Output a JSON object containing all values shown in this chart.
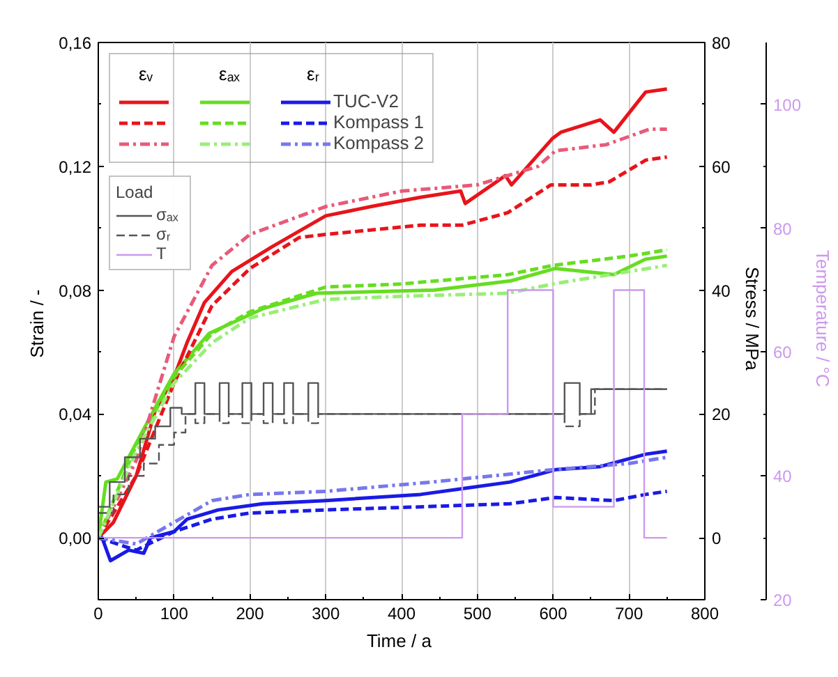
{
  "chart_data": {
    "type": "line",
    "xlabel": "Time  / a",
    "ylabel": "Strain  / -",
    "y2label": "Stress  / MPa",
    "y3label": "Temperature  / °C",
    "legend_title": "Load",
    "annotations": [
      "εᵥ",
      "εₐₓ",
      "εᵣ"
    ],
    "xlim": [
      0,
      800
    ],
    "xticks": [
      0,
      100,
      200,
      300,
      400,
      500,
      600,
      700,
      800
    ],
    "ylim": [
      -0.02,
      0.16
    ],
    "yticks": [
      {
        "value": 0,
        "label": "0,00"
      },
      {
        "value": 0.04,
        "label": "0,04"
      },
      {
        "value": 0.08,
        "label": "0,08"
      },
      {
        "value": 0.12,
        "label": "0,12"
      },
      {
        "value": 0.16,
        "label": "0,16"
      }
    ],
    "y2lim": [
      -10,
      80
    ],
    "y2ticks": [
      0,
      20,
      40,
      60,
      80
    ],
    "y3lim": [
      20,
      110
    ],
    "y3ticks": [
      20,
      40,
      60,
      80,
      100
    ],
    "grid": "x",
    "legend": "top left",
    "series": [
      {
        "color": "#e8141b",
        "line_style": "solid",
        "x": [
          0,
          20,
          50,
          75,
          100,
          117,
          140,
          176,
          229,
          300,
          360,
          425,
          478,
          484,
          537,
          545,
          599,
          610,
          662,
          680,
          709,
          722,
          750
        ],
        "values": [
          0,
          0.005,
          0.02,
          0.041,
          0.052,
          0.063,
          0.076,
          0.086,
          0.094,
          0.104,
          0.107,
          0.11,
          0.112,
          0.108,
          0.117,
          0.114,
          0.129,
          0.131,
          0.135,
          0.131,
          0.14,
          0.144,
          0.145
        ]
      },
      {
        "color": "#66dd22",
        "line_style": "solid",
        "x": [
          0,
          10,
          25,
          40,
          75,
          100,
          146,
          217,
          288,
          443,
          544,
          603,
          680,
          722,
          750
        ],
        "values": [
          0,
          0.018,
          0.019,
          0.026,
          0.042,
          0.053,
          0.066,
          0.074,
          0.079,
          0.08,
          0.083,
          0.087,
          0.085,
          0.09,
          0.091
        ]
      },
      {
        "name": "TUC-V2",
        "color": "#1a1ae6",
        "line_style": "solid",
        "x": [
          0,
          5,
          16,
          40,
          60,
          69,
          100,
          117,
          158,
          217,
          300,
          425,
          484,
          543,
          603,
          662,
          722,
          750
        ],
        "values": [
          0,
          0,
          -0.0074,
          -0.004,
          -0.005,
          0,
          0.002,
          0.006,
          0.009,
          0.011,
          0.012,
          0.014,
          0.016,
          0.018,
          0.022,
          0.023,
          0.027,
          0.028
        ]
      },
      {
        "color": "#e8141b",
        "line_style": "dashed",
        "x": [
          0,
          50,
          100,
          150,
          200,
          265,
          300,
          425,
          480,
          540,
          597,
          650,
          674,
          722,
          750
        ],
        "values": [
          0,
          0.02,
          0.05,
          0.075,
          0.087,
          0.097,
          0.098,
          0.101,
          0.101,
          0.105,
          0.114,
          0.114,
          0.115,
          0.122,
          0.123
        ]
      },
      {
        "color": "#66dd22",
        "line_style": "dashed",
        "x": [
          0,
          50,
          100,
          150,
          200,
          300,
          400,
          540,
          600,
          700,
          750
        ],
        "values": [
          0,
          0.03,
          0.052,
          0.066,
          0.073,
          0.081,
          0.082,
          0.085,
          0.088,
          0.091,
          0.093
        ]
      },
      {
        "name": "Kompass 1",
        "color": "#1a1ae6",
        "line_style": "dashed",
        "x": [
          0,
          50,
          100,
          150,
          200,
          300,
          425,
          543,
          603,
          680,
          722,
          750
        ],
        "values": [
          0,
          -0.004,
          0.002,
          0.006,
          0.008,
          0.009,
          0.01,
          0.011,
          0.013,
          0.012,
          0.014,
          0.015
        ]
      },
      {
        "color": "#e85a78",
        "line_style": "dashdot",
        "x": [
          0,
          50,
          100,
          150,
          200,
          300,
          400,
          500,
          580,
          603,
          670,
          727,
          750
        ],
        "values": [
          0,
          0.025,
          0.065,
          0.088,
          0.098,
          0.107,
          0.112,
          0.114,
          0.12,
          0.125,
          0.127,
          0.132,
          0.132
        ]
      },
      {
        "color": "#99ee77",
        "line_style": "dashdot",
        "x": [
          0,
          50,
          100,
          150,
          200,
          300,
          400,
          540,
          600,
          700,
          750
        ],
        "values": [
          0,
          0.028,
          0.05,
          0.063,
          0.071,
          0.077,
          0.078,
          0.079,
          0.082,
          0.086,
          0.088
        ]
      },
      {
        "name": "Kompass 2",
        "color": "#7777ee",
        "line_style": "dashdot",
        "x": [
          0,
          50,
          100,
          150,
          200,
          300,
          440,
          600,
          700,
          750
        ],
        "values": [
          0,
          -0.002,
          0.005,
          0.012,
          0.014,
          0.015,
          0.018,
          0.022,
          0.024,
          0.026
        ]
      },
      {
        "name": "σₐₓ",
        "type": "step",
        "axis": "y2",
        "color": "#555555",
        "line_style": "solid",
        "x": [
          0,
          15,
          35,
          55,
          75,
          95,
          110,
          128,
          140,
          160,
          172,
          190,
          202,
          218,
          230,
          245,
          257,
          277,
          290,
          615,
          635,
          650,
          750
        ],
        "values": [
          5,
          9,
          13,
          16,
          18,
          21,
          20,
          25,
          20,
          25,
          20,
          25,
          20,
          25,
          20,
          25,
          20,
          25,
          20,
          25,
          20,
          24,
          24
        ]
      },
      {
        "name": "σᵣ",
        "type": "step",
        "axis": "y2",
        "color": "#555555",
        "line_style": "dashed",
        "x": [
          0,
          20,
          40,
          60,
          80,
          100,
          115,
          128,
          140,
          160,
          172,
          190,
          202,
          218,
          230,
          245,
          257,
          277,
          290,
          615,
          635,
          655,
          750
        ],
        "values": [
          4,
          7,
          10,
          12,
          15,
          17,
          20,
          18.5,
          20,
          18.5,
          20,
          18.5,
          20,
          18.5,
          20,
          18.5,
          20,
          18.5,
          20,
          18,
          20,
          24,
          24
        ]
      },
      {
        "name": "T",
        "type": "step",
        "axis": "y3",
        "color": "#cc99ee",
        "line_style": "solid",
        "x": [
          0,
          480,
          540,
          600,
          680,
          720,
          750
        ],
        "values": [
          30,
          50,
          70,
          35,
          70,
          30,
          30
        ]
      }
    ]
  }
}
